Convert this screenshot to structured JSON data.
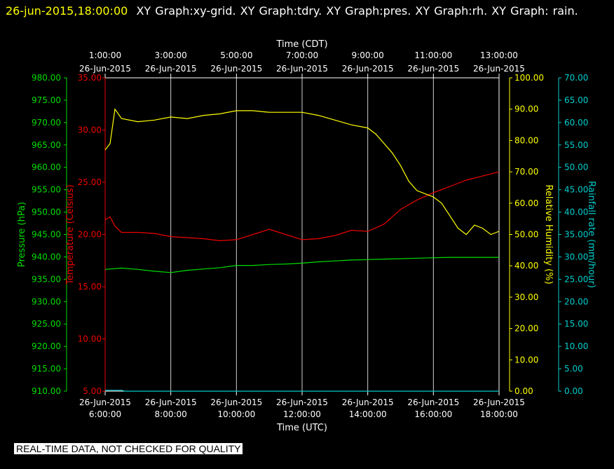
{
  "header": {
    "timestamp": "26-jun-2015,18:00:00",
    "graphs": "XY Graph:xy-grid.  XY Graph:tdry.  XY Graph:pres.  XY Graph:rh.  XY Graph: rain."
  },
  "footer": {
    "note": "REAL-TIME DATA, NOT CHECKED FOR QUALITY"
  },
  "colors": {
    "background": "#000000",
    "grid": "#d0d0d0",
    "pressure": "#00dd00",
    "temperature": "#ee0000",
    "humidity": "#ffff00",
    "rain": "#00cccc",
    "text": "#ffffff"
  },
  "chart_data": {
    "type": "line",
    "x_axis": {
      "top_title": "Time (CDT)",
      "bottom_title": "Time (UTC)",
      "range_utc_hours": [
        6,
        18
      ],
      "ticks_utc_hours": [
        6,
        8,
        10,
        12,
        14,
        16,
        18
      ],
      "bottom_tick_times": [
        "6:00:00",
        "8:00:00",
        "10:00:00",
        "12:00:00",
        "14:00:00",
        "16:00:00",
        "18:00:00"
      ],
      "top_tick_times": [
        "1:00:00",
        "3:00:00",
        "5:00:00",
        "7:00:00",
        "9:00:00",
        "11:00:00",
        "13:00:00"
      ],
      "tick_date": "26-Jun-2015"
    },
    "axes": [
      {
        "id": "pres",
        "label": "Pressure (hPa)",
        "range": [
          910,
          980
        ],
        "ticks": [
          "910.00",
          "915.00",
          "920.00",
          "925.00",
          "930.00",
          "935.00",
          "940.00",
          "945.00",
          "950.00",
          "955.00",
          "960.00",
          "965.00",
          "970.00",
          "975.00",
          "980.00"
        ]
      },
      {
        "id": "tdry",
        "label": "Temperature (Celsius)",
        "range": [
          5,
          35
        ],
        "ticks": [
          "5.00",
          "10.00",
          "15.00",
          "20.00",
          "25.00",
          "30.00",
          "35.00"
        ]
      },
      {
        "id": "rh",
        "label": "Relative Humidity (%)",
        "range": [
          0,
          100
        ],
        "ticks": [
          "0.00",
          "10.00",
          "20.00",
          "30.00",
          "40.00",
          "50.00",
          "60.00",
          "70.00",
          "80.00",
          "90.00",
          "100.00"
        ]
      },
      {
        "id": "rain",
        "label": "Rainfall rate (mm/hour)",
        "range": [
          0,
          70
        ],
        "ticks": [
          "0.00",
          "5.00",
          "10.00",
          "15.00",
          "20.00",
          "25.00",
          "30.00",
          "35.00",
          "40.00",
          "45.00",
          "50.00",
          "55.00",
          "60.00",
          "65.00",
          "70.00"
        ]
      }
    ],
    "series": [
      {
        "axis": "tdry",
        "x": [
          6.0,
          6.15,
          6.3,
          6.5,
          7.0,
          7.5,
          8.0,
          8.5,
          9.0,
          9.5,
          10.0,
          10.5,
          11.0,
          11.5,
          12.0,
          12.5,
          13.0,
          13.5,
          14.0,
          14.5,
          15.0,
          15.5,
          16.0,
          16.5,
          17.0,
          17.5,
          18.0
        ],
        "y": [
          21.4,
          21.7,
          20.8,
          20.2,
          20.2,
          20.1,
          19.8,
          19.7,
          19.6,
          19.4,
          19.5,
          20.0,
          20.5,
          20.0,
          19.5,
          19.6,
          19.9,
          20.4,
          20.3,
          21.0,
          22.4,
          23.3,
          24.0,
          24.6,
          25.2,
          25.6,
          26.0
        ]
      },
      {
        "axis": "pres",
        "x": [
          6.0,
          6.5,
          7.0,
          7.5,
          8.0,
          8.5,
          9.0,
          9.5,
          10.0,
          10.5,
          11.0,
          11.5,
          12.0,
          12.5,
          13.0,
          13.5,
          14.0,
          14.5,
          15.0,
          15.5,
          16.0,
          16.5,
          17.0,
          17.5,
          18.0
        ],
        "y": [
          937.2,
          937.5,
          937.2,
          936.8,
          936.5,
          937.0,
          937.3,
          937.6,
          938.1,
          938.1,
          938.3,
          938.4,
          938.6,
          938.9,
          939.1,
          939.3,
          939.4,
          939.5,
          939.6,
          939.7,
          939.8,
          939.9,
          939.9,
          939.9,
          939.9
        ]
      },
      {
        "axis": "rh",
        "x": [
          6.0,
          6.15,
          6.3,
          6.5,
          7.0,
          7.5,
          8.0,
          8.5,
          9.0,
          9.5,
          10.0,
          10.5,
          11.0,
          11.5,
          12.0,
          12.5,
          13.0,
          13.5,
          14.0,
          14.25,
          14.5,
          14.75,
          15.0,
          15.25,
          15.5,
          15.75,
          16.0,
          16.25,
          16.5,
          16.75,
          17.0,
          17.25,
          17.5,
          17.75,
          18.0
        ],
        "y": [
          77,
          79,
          90,
          87,
          86,
          86.5,
          87.5,
          87,
          88,
          88.5,
          89.5,
          89.5,
          89,
          89,
          89,
          88,
          86.5,
          85,
          84,
          82,
          79,
          76,
          72,
          67,
          64,
          63,
          62,
          60,
          56,
          52,
          50,
          53,
          52,
          50,
          51
        ]
      },
      {
        "axis": "rain",
        "x": [
          6.0,
          6.5,
          6.6,
          12.0,
          18.0
        ],
        "y": [
          0.2,
          0.2,
          0.0,
          0.0,
          0.0
        ]
      }
    ]
  }
}
